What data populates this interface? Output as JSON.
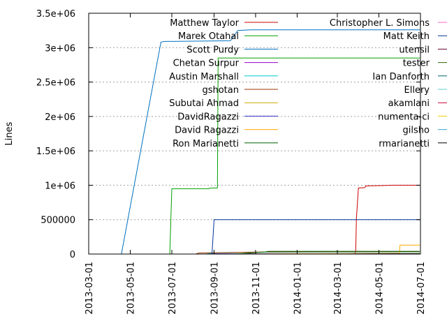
{
  "chart_data": {
    "type": "line",
    "title": "",
    "xlabel": "",
    "ylabel": "Lines",
    "xlim": [
      "2013-03-01",
      "2014-07-01"
    ],
    "ylim": [
      0,
      3500000
    ],
    "grid": "horizontal dotted",
    "legend_placement": "inside top, two columns",
    "y_ticks": [
      {
        "value": 0,
        "label": "0"
      },
      {
        "value": 500000,
        "label": "500000"
      },
      {
        "value": 1000000,
        "label": "1e+06"
      },
      {
        "value": 1500000,
        "label": "1.5e+06"
      },
      {
        "value": 2000000,
        "label": "2e+06"
      },
      {
        "value": 2500000,
        "label": "2.5e+06"
      },
      {
        "value": 3000000,
        "label": "3e+06"
      },
      {
        "value": 3500000,
        "label": "3.5e+06"
      }
    ],
    "x_ticks": [
      {
        "value": "2013-03-01",
        "label": "2013-03-01"
      },
      {
        "value": "2013-05-01",
        "label": "2013-05-01"
      },
      {
        "value": "2013-07-01",
        "label": "2013-07-01"
      },
      {
        "value": "2013-09-01",
        "label": "2013-09-01"
      },
      {
        "value": "2013-11-01",
        "label": "2013-11-01"
      },
      {
        "value": "2014-01-01",
        "label": "2014-01-01"
      },
      {
        "value": "2014-03-01",
        "label": "2014-03-01"
      },
      {
        "value": "2014-05-01",
        "label": "2014-05-01"
      },
      {
        "value": "2014-07-01",
        "label": "2014-07-01"
      }
    ],
    "series": [
      {
        "name": "Matthew Taylor",
        "color": "#cc0000",
        "points": [
          [
            "2014-03-26",
            0
          ],
          [
            "2014-03-28",
            30000
          ],
          [
            "2014-03-29",
            520000
          ],
          [
            "2014-04-01",
            960000
          ],
          [
            "2014-04-10",
            965000
          ],
          [
            "2014-04-12",
            990000
          ],
          [
            "2014-05-05",
            995000
          ],
          [
            "2014-05-22",
            1000000
          ],
          [
            "2014-06-30",
            1000000
          ]
        ]
      },
      {
        "name": "Marek Otahal",
        "color": "#00a000",
        "points": [
          [
            "2013-06-28",
            0
          ],
          [
            "2013-07-01",
            950000
          ],
          [
            "2013-08-25",
            950000
          ],
          [
            "2013-08-26",
            960000
          ],
          [
            "2013-09-06",
            960000
          ],
          [
            "2013-09-07",
            2850000
          ],
          [
            "2014-06-30",
            2850000
          ]
        ]
      },
      {
        "name": "Scott Purdy",
        "color": "#0070c0",
        "points": [
          [
            "2013-04-18",
            0
          ],
          [
            "2013-06-15",
            3080000
          ],
          [
            "2013-06-20",
            3090000
          ],
          [
            "2013-09-25",
            3100000
          ],
          [
            "2013-10-06",
            3250000
          ],
          [
            "2013-10-25",
            3260000
          ],
          [
            "2014-06-30",
            3260000
          ]
        ]
      },
      {
        "name": "Chetan Surpur",
        "color": "#9900cc",
        "points": [
          [
            "2013-11-01",
            0
          ],
          [
            "2014-06-30",
            5000
          ]
        ]
      },
      {
        "name": "Austin Marshall",
        "color": "#00cccc",
        "points": [
          [
            "2013-08-20",
            0
          ],
          [
            "2013-09-01",
            20000
          ],
          [
            "2013-10-10",
            25000
          ],
          [
            "2014-06-30",
            30000
          ]
        ]
      },
      {
        "name": "gshotan",
        "color": "#993300",
        "points": [
          [
            "2013-08-05",
            0
          ],
          [
            "2013-08-10",
            15000
          ],
          [
            "2013-09-10",
            20000
          ],
          [
            "2013-11-20",
            30000
          ],
          [
            "2014-06-30",
            35000
          ]
        ]
      },
      {
        "name": "Subutai Ahmad",
        "color": "#ccaa00",
        "points": [
          [
            "2013-09-01",
            0
          ],
          [
            "2014-06-30",
            8000
          ]
        ]
      },
      {
        "name": "DavidRagazzi",
        "color": "#3333cc",
        "points": [
          [
            "2013-08-25",
            0
          ],
          [
            "2013-09-01",
            5000
          ],
          [
            "2014-06-30",
            5000
          ]
        ]
      },
      {
        "name": "David Ragazzi",
        "color": "#ffaa00",
        "points": [
          [
            "2013-09-01",
            0
          ],
          [
            "2014-05-25",
            10000
          ],
          [
            "2014-05-31",
            10000
          ],
          [
            "2014-06-01",
            130000
          ],
          [
            "2014-06-30",
            130000
          ]
        ]
      },
      {
        "name": "Ron Marianetti",
        "color": "#006600",
        "points": [
          [
            "2013-10-01",
            0
          ],
          [
            "2013-11-15",
            30000
          ],
          [
            "2013-11-20",
            40000
          ],
          [
            "2014-06-30",
            40000
          ]
        ]
      },
      {
        "name": "Christopher L. Simons",
        "color": "#ff66cc",
        "points": [
          [
            "2014-01-01",
            0
          ],
          [
            "2014-06-30",
            2000
          ]
        ]
      },
      {
        "name": "Matt Keith",
        "color": "#003399",
        "points": [
          [
            "2013-08-29",
            0
          ],
          [
            "2013-09-01",
            500000
          ],
          [
            "2014-06-30",
            500000
          ]
        ]
      },
      {
        "name": "utensil",
        "color": "#660033",
        "points": [
          [
            "2014-01-01",
            0
          ],
          [
            "2014-06-30",
            1000
          ]
        ]
      },
      {
        "name": "tester",
        "color": "#336600",
        "points": [
          [
            "2013-09-01",
            0
          ],
          [
            "2014-06-30",
            1000
          ]
        ]
      },
      {
        "name": "Ian Danforth",
        "color": "#006666",
        "points": [
          [
            "2013-09-01",
            0
          ],
          [
            "2014-06-30",
            2000
          ]
        ]
      },
      {
        "name": "Ellery",
        "color": "#66cccc",
        "points": [
          [
            "2014-01-01",
            0
          ],
          [
            "2014-06-30",
            1000
          ]
        ]
      },
      {
        "name": "akamlani",
        "color": "#cc0033",
        "points": [
          [
            "2014-03-01",
            0
          ],
          [
            "2014-06-30",
            1000
          ]
        ]
      },
      {
        "name": "numenta-ci",
        "color": "#eecc00",
        "points": [
          [
            "2014-01-01",
            0
          ],
          [
            "2014-06-30",
            1000
          ]
        ]
      },
      {
        "name": "gilsho",
        "color": "#33aacc",
        "points": [
          [
            "2014-01-01",
            0
          ],
          [
            "2014-06-30",
            1000
          ]
        ]
      },
      {
        "name": "rmarianetti",
        "color": "#000000",
        "points": [
          [
            "2014-03-15",
            0
          ],
          [
            "2014-05-20",
            5000
          ],
          [
            "2014-06-30",
            5000
          ]
        ]
      }
    ]
  }
}
